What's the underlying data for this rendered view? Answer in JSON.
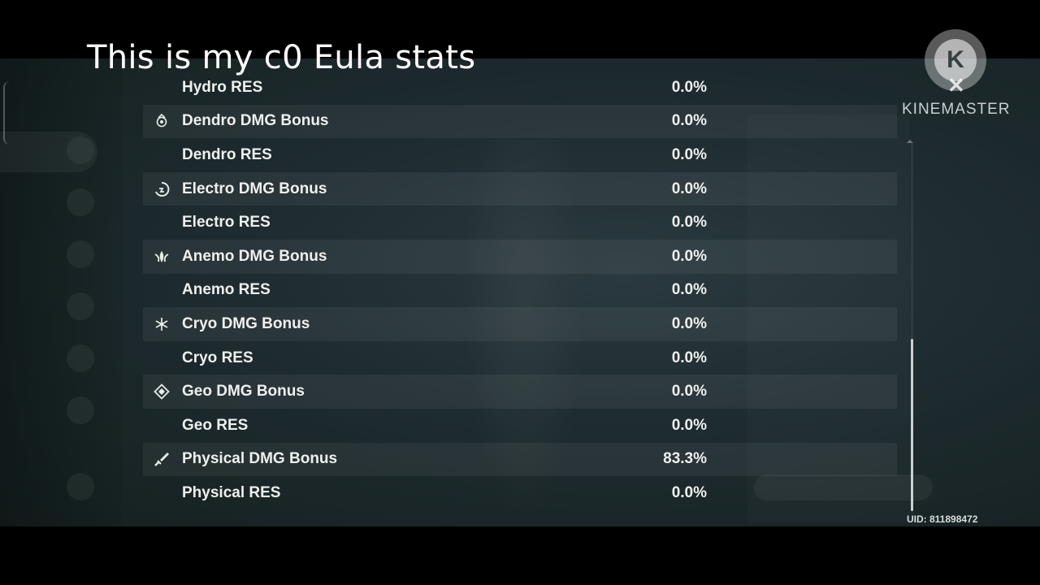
{
  "caption": "This is my c0 Eula stats",
  "watermark": {
    "brand": "KINEMASTER",
    "logo_letter": "K",
    "logo_mark": "✕"
  },
  "uid": "UID: 811898472",
  "stats": [
    {
      "icon": "",
      "label": "Hydro RES",
      "value": "0.0%"
    },
    {
      "icon": "dendro-element-icon",
      "label": "Dendro DMG Bonus",
      "value": "0.0%"
    },
    {
      "icon": "",
      "label": "Dendro RES",
      "value": "0.0%"
    },
    {
      "icon": "electro-element-icon",
      "label": "Electro DMG Bonus",
      "value": "0.0%"
    },
    {
      "icon": "",
      "label": "Electro RES",
      "value": "0.0%"
    },
    {
      "icon": "anemo-element-icon",
      "label": "Anemo DMG Bonus",
      "value": "0.0%"
    },
    {
      "icon": "",
      "label": "Anemo RES",
      "value": "0.0%"
    },
    {
      "icon": "cryo-element-icon",
      "label": "Cryo DMG Bonus",
      "value": "0.0%"
    },
    {
      "icon": "",
      "label": "Cryo RES",
      "value": "0.0%"
    },
    {
      "icon": "geo-element-icon",
      "label": "Geo DMG Bonus",
      "value": "0.0%"
    },
    {
      "icon": "",
      "label": "Geo RES",
      "value": "0.0%"
    },
    {
      "icon": "physical-sword-icon",
      "label": "Physical DMG Bonus",
      "value": "83.3%"
    },
    {
      "icon": "",
      "label": "Physical RES",
      "value": "0.0%"
    }
  ],
  "scrollbar": {
    "position_fraction": 1.0
  },
  "colors": {
    "text": "#eef0ee",
    "row_alt": "#2a3538",
    "background": "#1f2c31"
  }
}
